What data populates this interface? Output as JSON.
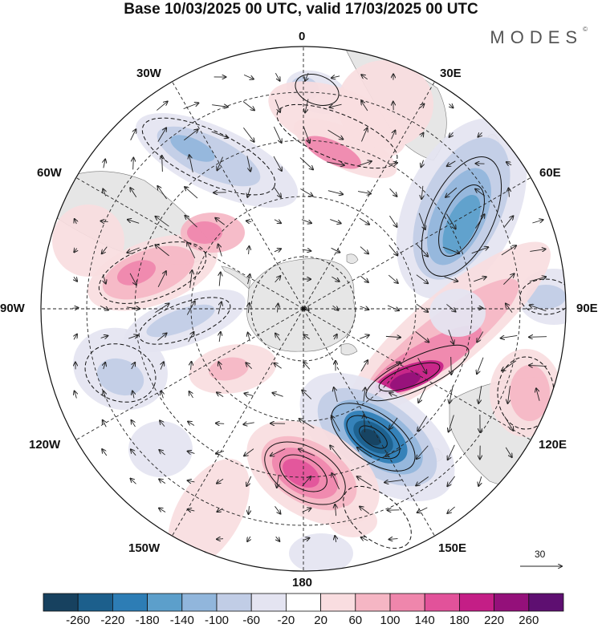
{
  "title": "Base 10/03/2025 00 UTC, valid 17/03/2025 00 UTC",
  "brand": {
    "name": "MODES",
    "mark": "©"
  },
  "longitude_labels": {
    "n0": "0",
    "e30": "30E",
    "e60": "60E",
    "e90": "90E",
    "e120": "120E",
    "e150": "150E",
    "s180": "180",
    "w150": "150W",
    "w120": "120W",
    "w90": "90W",
    "w60": "60W",
    "w30": "30W"
  },
  "reference_vector": {
    "value": "30"
  },
  "colors": {
    "land": "#e6e6e6",
    "palette": [
      "#17415f",
      "#1c5f8c",
      "#2d7db5",
      "#5c9fcb",
      "#91b6dc",
      "#c1cde6",
      "#e4e4f1",
      "#ffffff",
      "#f9dde0",
      "#f5b6c4",
      "#ef86ac",
      "#e2529a",
      "#c41e86",
      "#94107a",
      "#5e0f71"
    ]
  },
  "colorbar": {
    "labels": [
      "-260",
      "-220",
      "-180",
      "-140",
      "-100",
      "-60",
      "-20",
      "20",
      "60",
      "100",
      "140",
      "180",
      "220",
      "260"
    ]
  }
}
